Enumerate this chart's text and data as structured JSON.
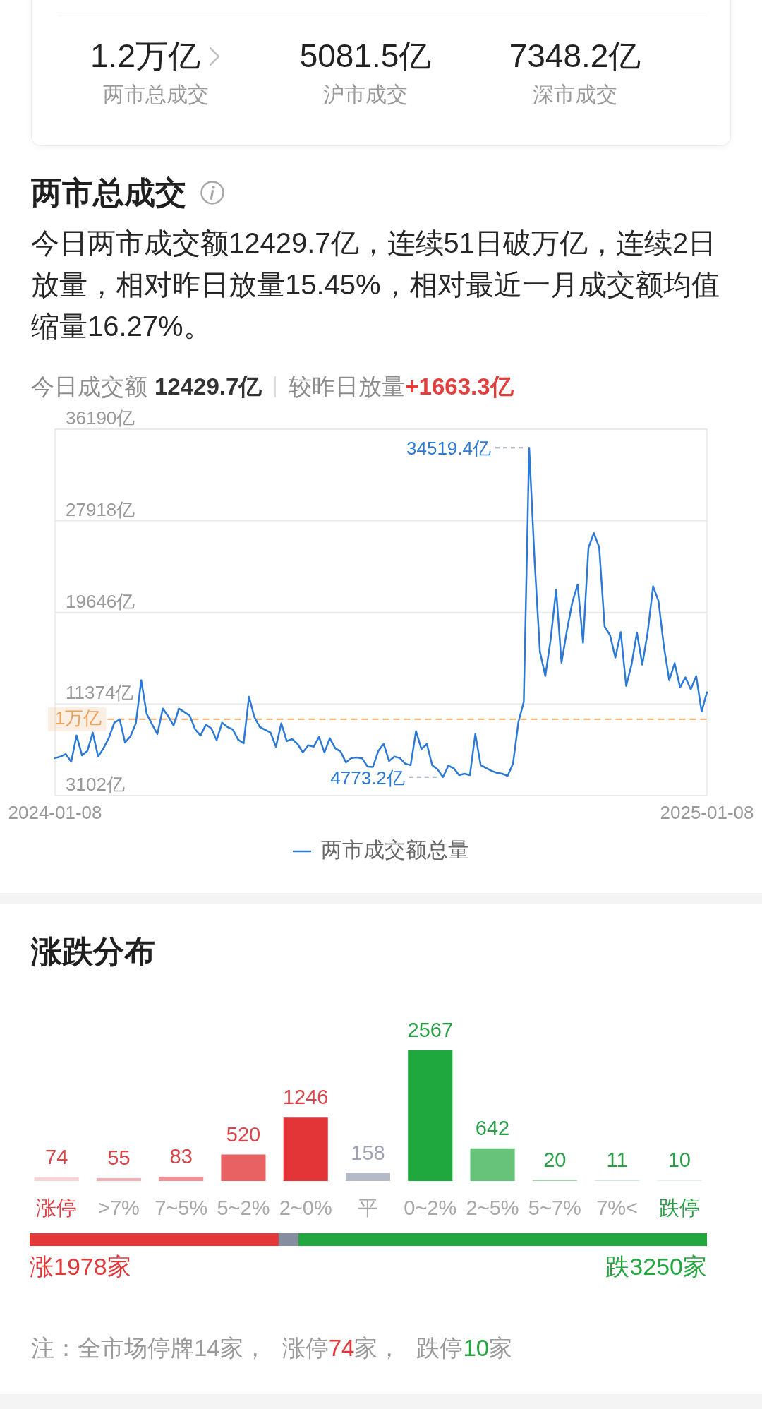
{
  "chart_data": [
    {
      "type": "other",
      "annotations": [
        "1.2万亿",
        "两市总成交",
        "5081.5亿",
        "沪市成交",
        "7348.2亿",
        "深市成交"
      ]
    },
    {
      "type": "line",
      "title": "两市总成交",
      "subtitle": "今日两市成交额12429.7亿，连续51日破万亿，连续2日放量，相对昨日放量15.45%，相对最近一月成交额均值缩量16.27%。",
      "annotations": [
        "今日成交额",
        "12429.7亿",
        "较昨日放量",
        "+1663.3亿"
      ],
      "categories": [
        "2024-01-08",
        null,
        null,
        null,
        null,
        null,
        null,
        null,
        null,
        null,
        null,
        null,
        null,
        null,
        null,
        null,
        null,
        null,
        null,
        null,
        null,
        null,
        null,
        null,
        null,
        null,
        null,
        null,
        null,
        null,
        null,
        null,
        null,
        null,
        null,
        null,
        null,
        null,
        null,
        null,
        null,
        null,
        null,
        null,
        null,
        null,
        null,
        null,
        null,
        null,
        null,
        null,
        null,
        null,
        null,
        null,
        null,
        null,
        null,
        null,
        null,
        null,
        null,
        null,
        null,
        null,
        null,
        null,
        null,
        null,
        null,
        null,
        null,
        null,
        null,
        null,
        null,
        null,
        null,
        null,
        null,
        null,
        null,
        null,
        null,
        null,
        null,
        null,
        null,
        null,
        null,
        null,
        null,
        null,
        null,
        null,
        null,
        null,
        null,
        null,
        null,
        null,
        null,
        null,
        null,
        null,
        null,
        null,
        null,
        null,
        null,
        null,
        null,
        null,
        null,
        null,
        null,
        null,
        null,
        null,
        null,
        "2025-01-08"
      ],
      "series": [
        {
          "name": "两市成交额总量",
          "color": "#2d7ad6",
          "values": [
            6490,
            6620,
            6850,
            6160,
            8530,
            6740,
            7130,
            8790,
            6620,
            7380,
            8330,
            9680,
            9990,
            7890,
            8460,
            9630,
            13510,
            10500,
            9550,
            8660,
            10960,
            10270,
            9430,
            10960,
            10650,
            10320,
            9090,
            8530,
            9500,
            9170,
            8100,
            9680,
            9300,
            9070,
            8150,
            7820,
            12030,
            10190,
            9300,
            9040,
            8790,
            7510,
            9630,
            8020,
            8200,
            7770,
            7000,
            7640,
            7510,
            8400,
            7000,
            8280,
            7380,
            7080,
            6100,
            6490,
            6540,
            6460,
            5720,
            5690,
            7130,
            7770,
            6230,
            6620,
            6490,
            5980,
            5850,
            8920,
            7300,
            7770,
            5850,
            5470,
            4773.2,
            5800,
            5570,
            4950,
            5080,
            4950,
            8660,
            5850,
            5590,
            5340,
            5160,
            5080,
            4880,
            5980,
            9730,
            11570,
            34519.4,
            24370,
            16070,
            13900,
            17240,
            21690,
            15100,
            17990,
            20540,
            22150,
            16890,
            25470,
            26800,
            25520,
            18370,
            17600,
            15560,
            17860,
            13000,
            14920,
            17810,
            14920,
            17860,
            22000,
            20670,
            16580,
            13510,
            15050,
            12880,
            13770,
            12700,
            13900,
            10700,
            12430
          ],
          "value_labels": [
            null,
            null,
            null,
            null,
            null,
            null,
            null,
            null,
            null,
            null,
            null,
            null,
            null,
            null,
            null,
            null,
            null,
            null,
            null,
            null,
            null,
            null,
            null,
            null,
            null,
            null,
            null,
            null,
            null,
            null,
            null,
            null,
            null,
            null,
            null,
            null,
            null,
            null,
            null,
            null,
            null,
            null,
            null,
            null,
            null,
            null,
            null,
            null,
            null,
            null,
            null,
            null,
            null,
            null,
            null,
            null,
            null,
            null,
            null,
            null,
            null,
            null,
            null,
            null,
            null,
            null,
            null,
            null,
            null,
            null,
            null,
            null,
            "4773.2亿",
            null,
            null,
            null,
            null,
            null,
            null,
            null,
            null,
            null,
            null,
            null,
            null,
            null,
            null,
            null,
            "34519.4亿",
            null,
            null,
            null,
            null,
            null,
            null,
            null,
            null,
            null,
            null,
            null,
            null,
            null,
            null,
            null,
            null,
            null,
            null,
            null,
            null,
            null,
            null,
            null,
            null,
            null,
            null,
            null,
            null,
            null,
            null,
            null,
            null,
            null
          ]
        }
      ],
      "ylim": [
        3102,
        36190
      ],
      "yticks": [
        {
          "value": 3102,
          "label": "3102亿"
        },
        {
          "value": 11374,
          "label": "11374亿"
        },
        {
          "value": 19646,
          "label": "19646亿"
        },
        {
          "value": 27918,
          "label": "27918亿"
        },
        {
          "value": 36190,
          "label": "36190亿"
        }
      ],
      "grid": "y",
      "legend": "bottom",
      "ref_lines": [
        {
          "axis": "y",
          "value": 10000,
          "label": "1万亿",
          "color": "#eba35e",
          "line_style": "dashed"
        }
      ]
    },
    {
      "type": "bar",
      "title": "涨跌分布",
      "categories": [
        "涨停",
        ">7%",
        "7~5%",
        "5~2%",
        "2~0%",
        "平",
        "0~2%",
        "2~5%",
        "5~7%",
        "7%<",
        "跌停"
      ],
      "values": [
        74,
        55,
        83,
        520,
        1246,
        158,
        2567,
        642,
        20,
        11,
        10
      ],
      "colors": [
        "#f9d4d6",
        "#f3b0b3",
        "#ef9396",
        "#e86163",
        "#e33437",
        "#b4bac8",
        "#1fa83e",
        "#67c27a",
        "#9bd8a6",
        "#bde6c5",
        "#d6efdb"
      ],
      "data_labels": true
    },
    {
      "type": "bar",
      "orientation": "horizontal",
      "stacked": true,
      "categories": [
        null
      ],
      "series": [
        {
          "color": "#e3373a",
          "values": [
            1978
          ],
          "value_labels": [
            "涨1978家"
          ]
        },
        {
          "color": "#858d9f",
          "values": [
            158
          ],
          "value_labels": [
            null
          ]
        },
        {
          "color": "#22a63e",
          "values": [
            3250
          ],
          "value_labels": [
            "跌3250家"
          ]
        }
      ],
      "annotations": [
        "注：全市场停牌14家，",
        "涨停74家，",
        "跌停10家"
      ]
    }
  ]
}
